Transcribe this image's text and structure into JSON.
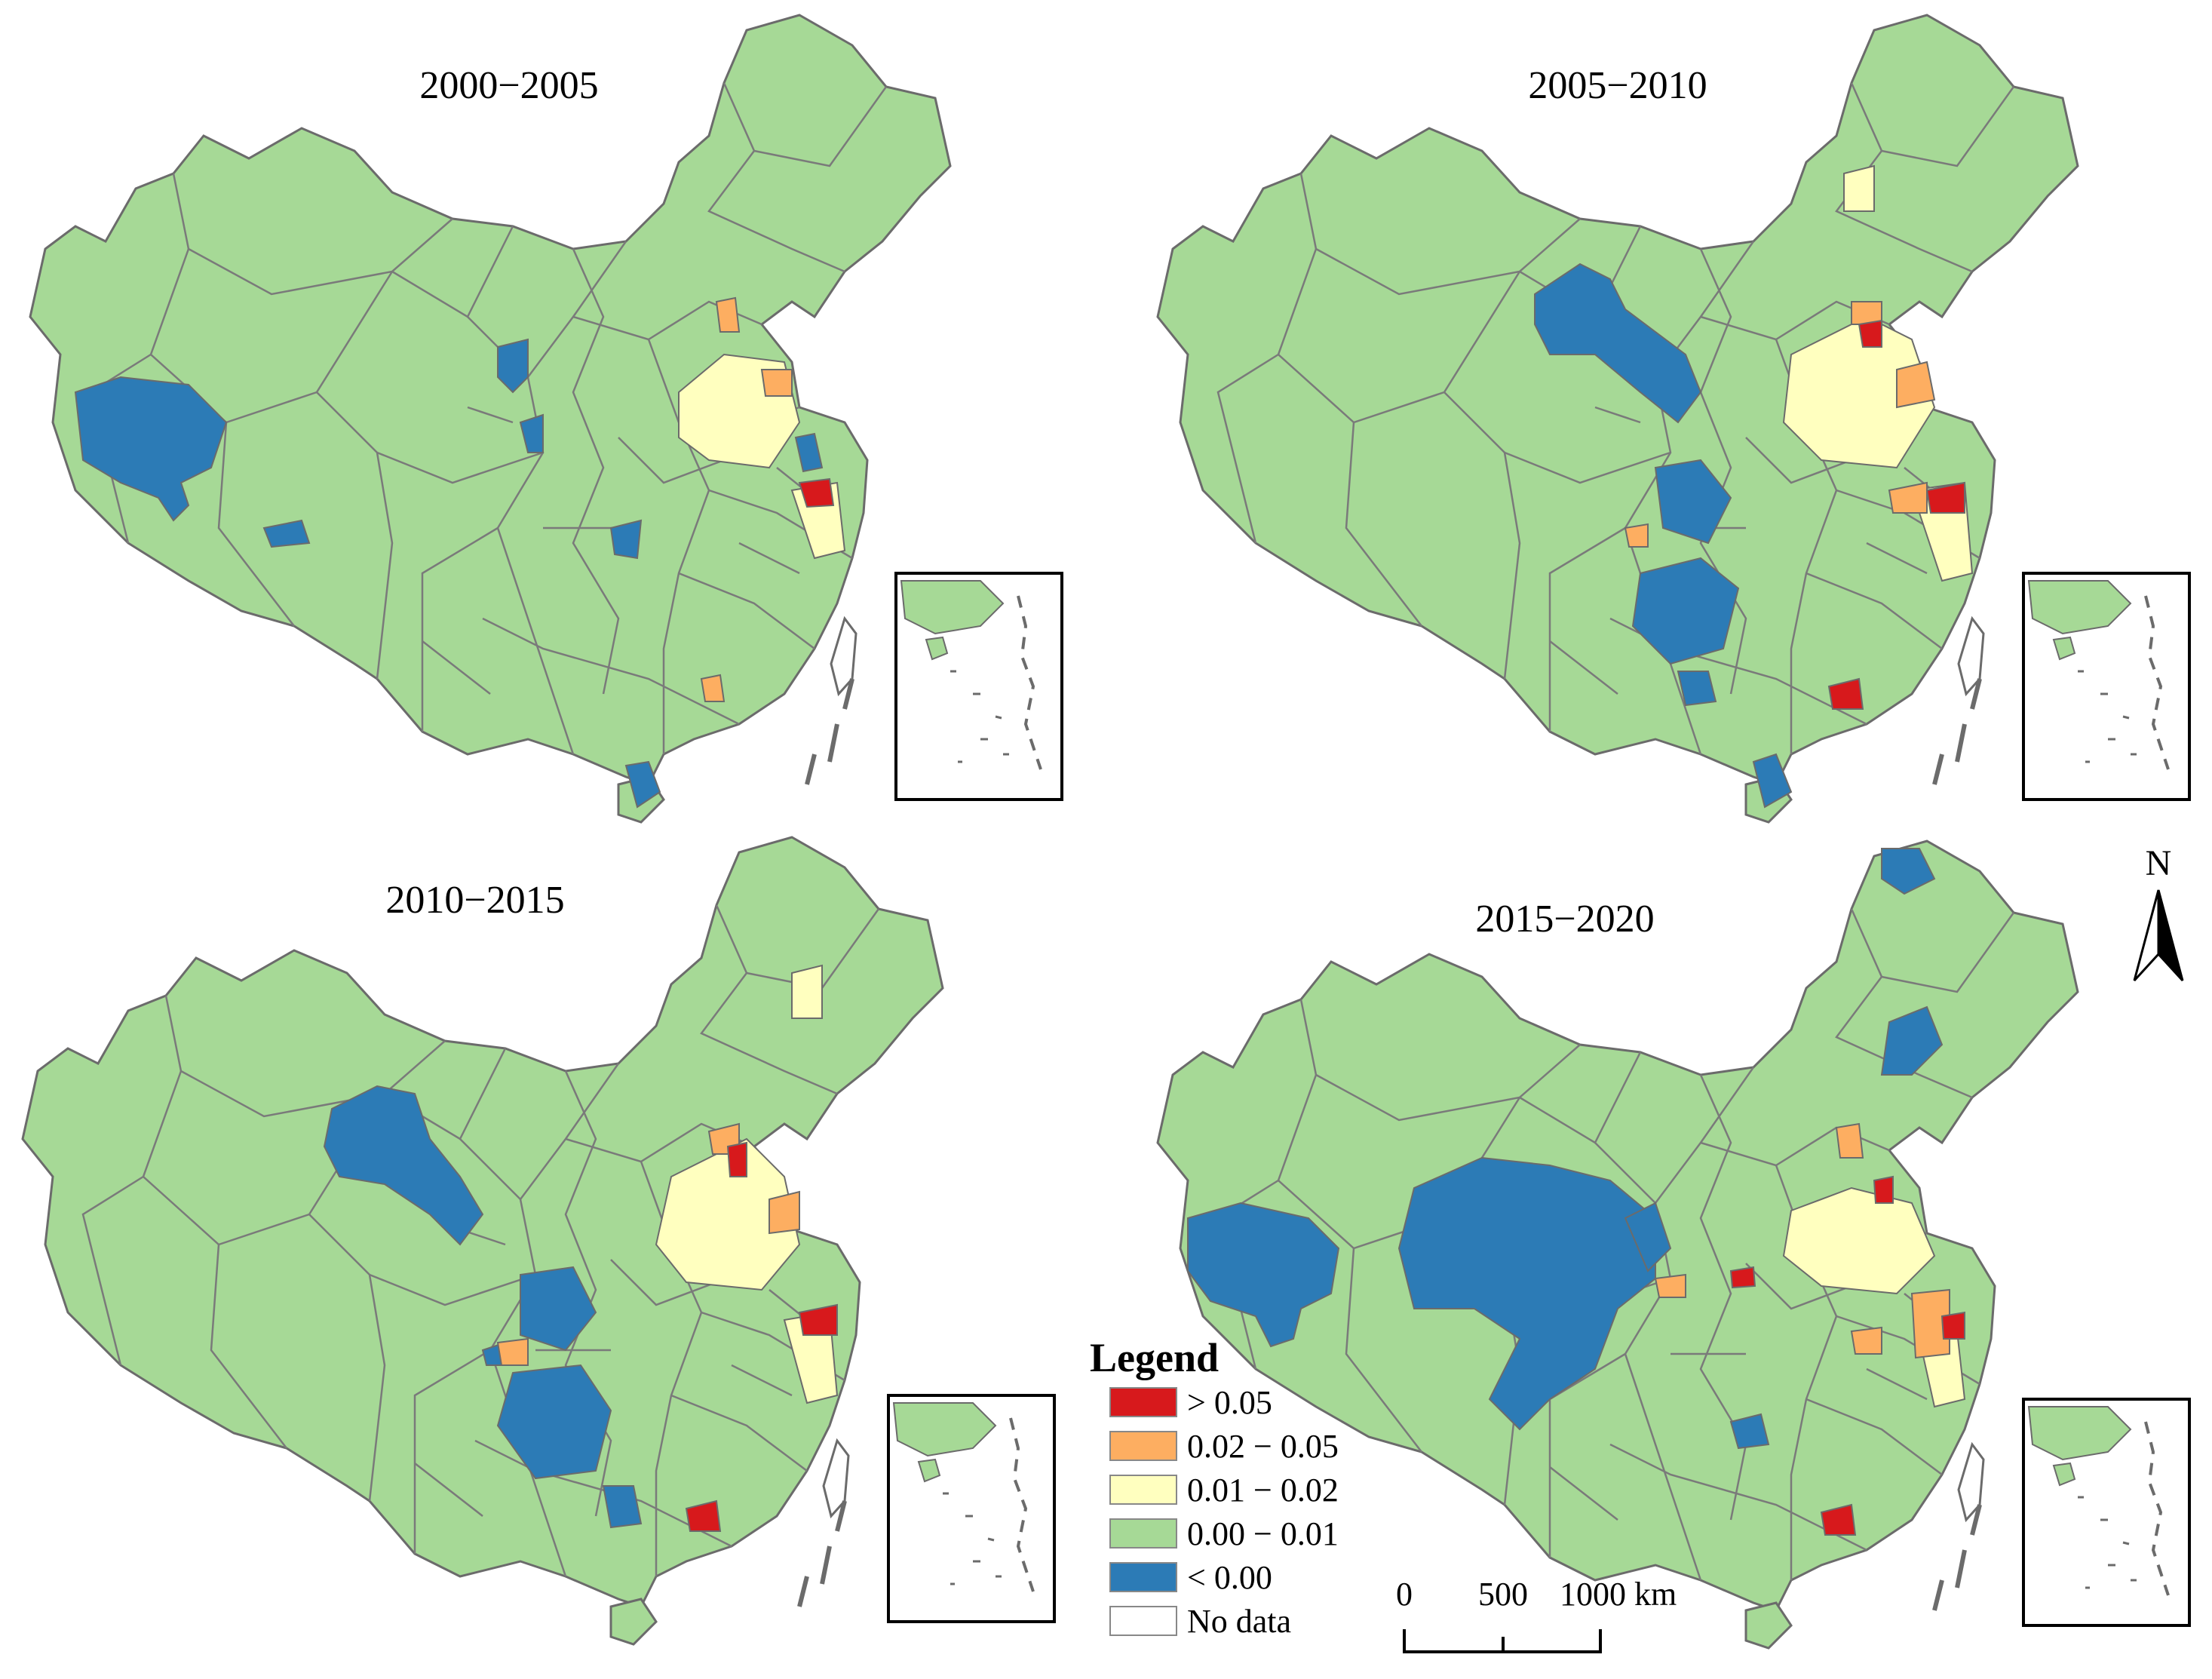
{
  "panels": [
    {
      "title": "2000−2005"
    },
    {
      "title": "2005−2010"
    },
    {
      "title": "2010−2015"
    },
    {
      "title": "2015−2020"
    }
  ],
  "legend": {
    "title": "Legend",
    "items": [
      {
        "label": "> 0.05",
        "color": "#d7191c"
      },
      {
        "label": "0.02 − 0.05",
        "color": "#fdae61"
      },
      {
        "label": "0.01 − 0.02",
        "color": "#ffffbf"
      },
      {
        "label": "0.00 − 0.01",
        "color": "#a6d996"
      },
      {
        "label": "< 0.00",
        "color": "#2c7bb6"
      },
      {
        "label": "No data",
        "color": "#ffffff"
      }
    ]
  },
  "scale_bar": {
    "labels": [
      "0",
      "500",
      "1000 km"
    ]
  },
  "north_arrow": {
    "label": "N"
  },
  "colors": {
    "land": "#a6d996",
    "border": "#6b6b6b",
    "high": "#d7191c",
    "mid_high": "#fdae61",
    "mid": "#ffffbf",
    "negative": "#2c7bb6"
  }
}
